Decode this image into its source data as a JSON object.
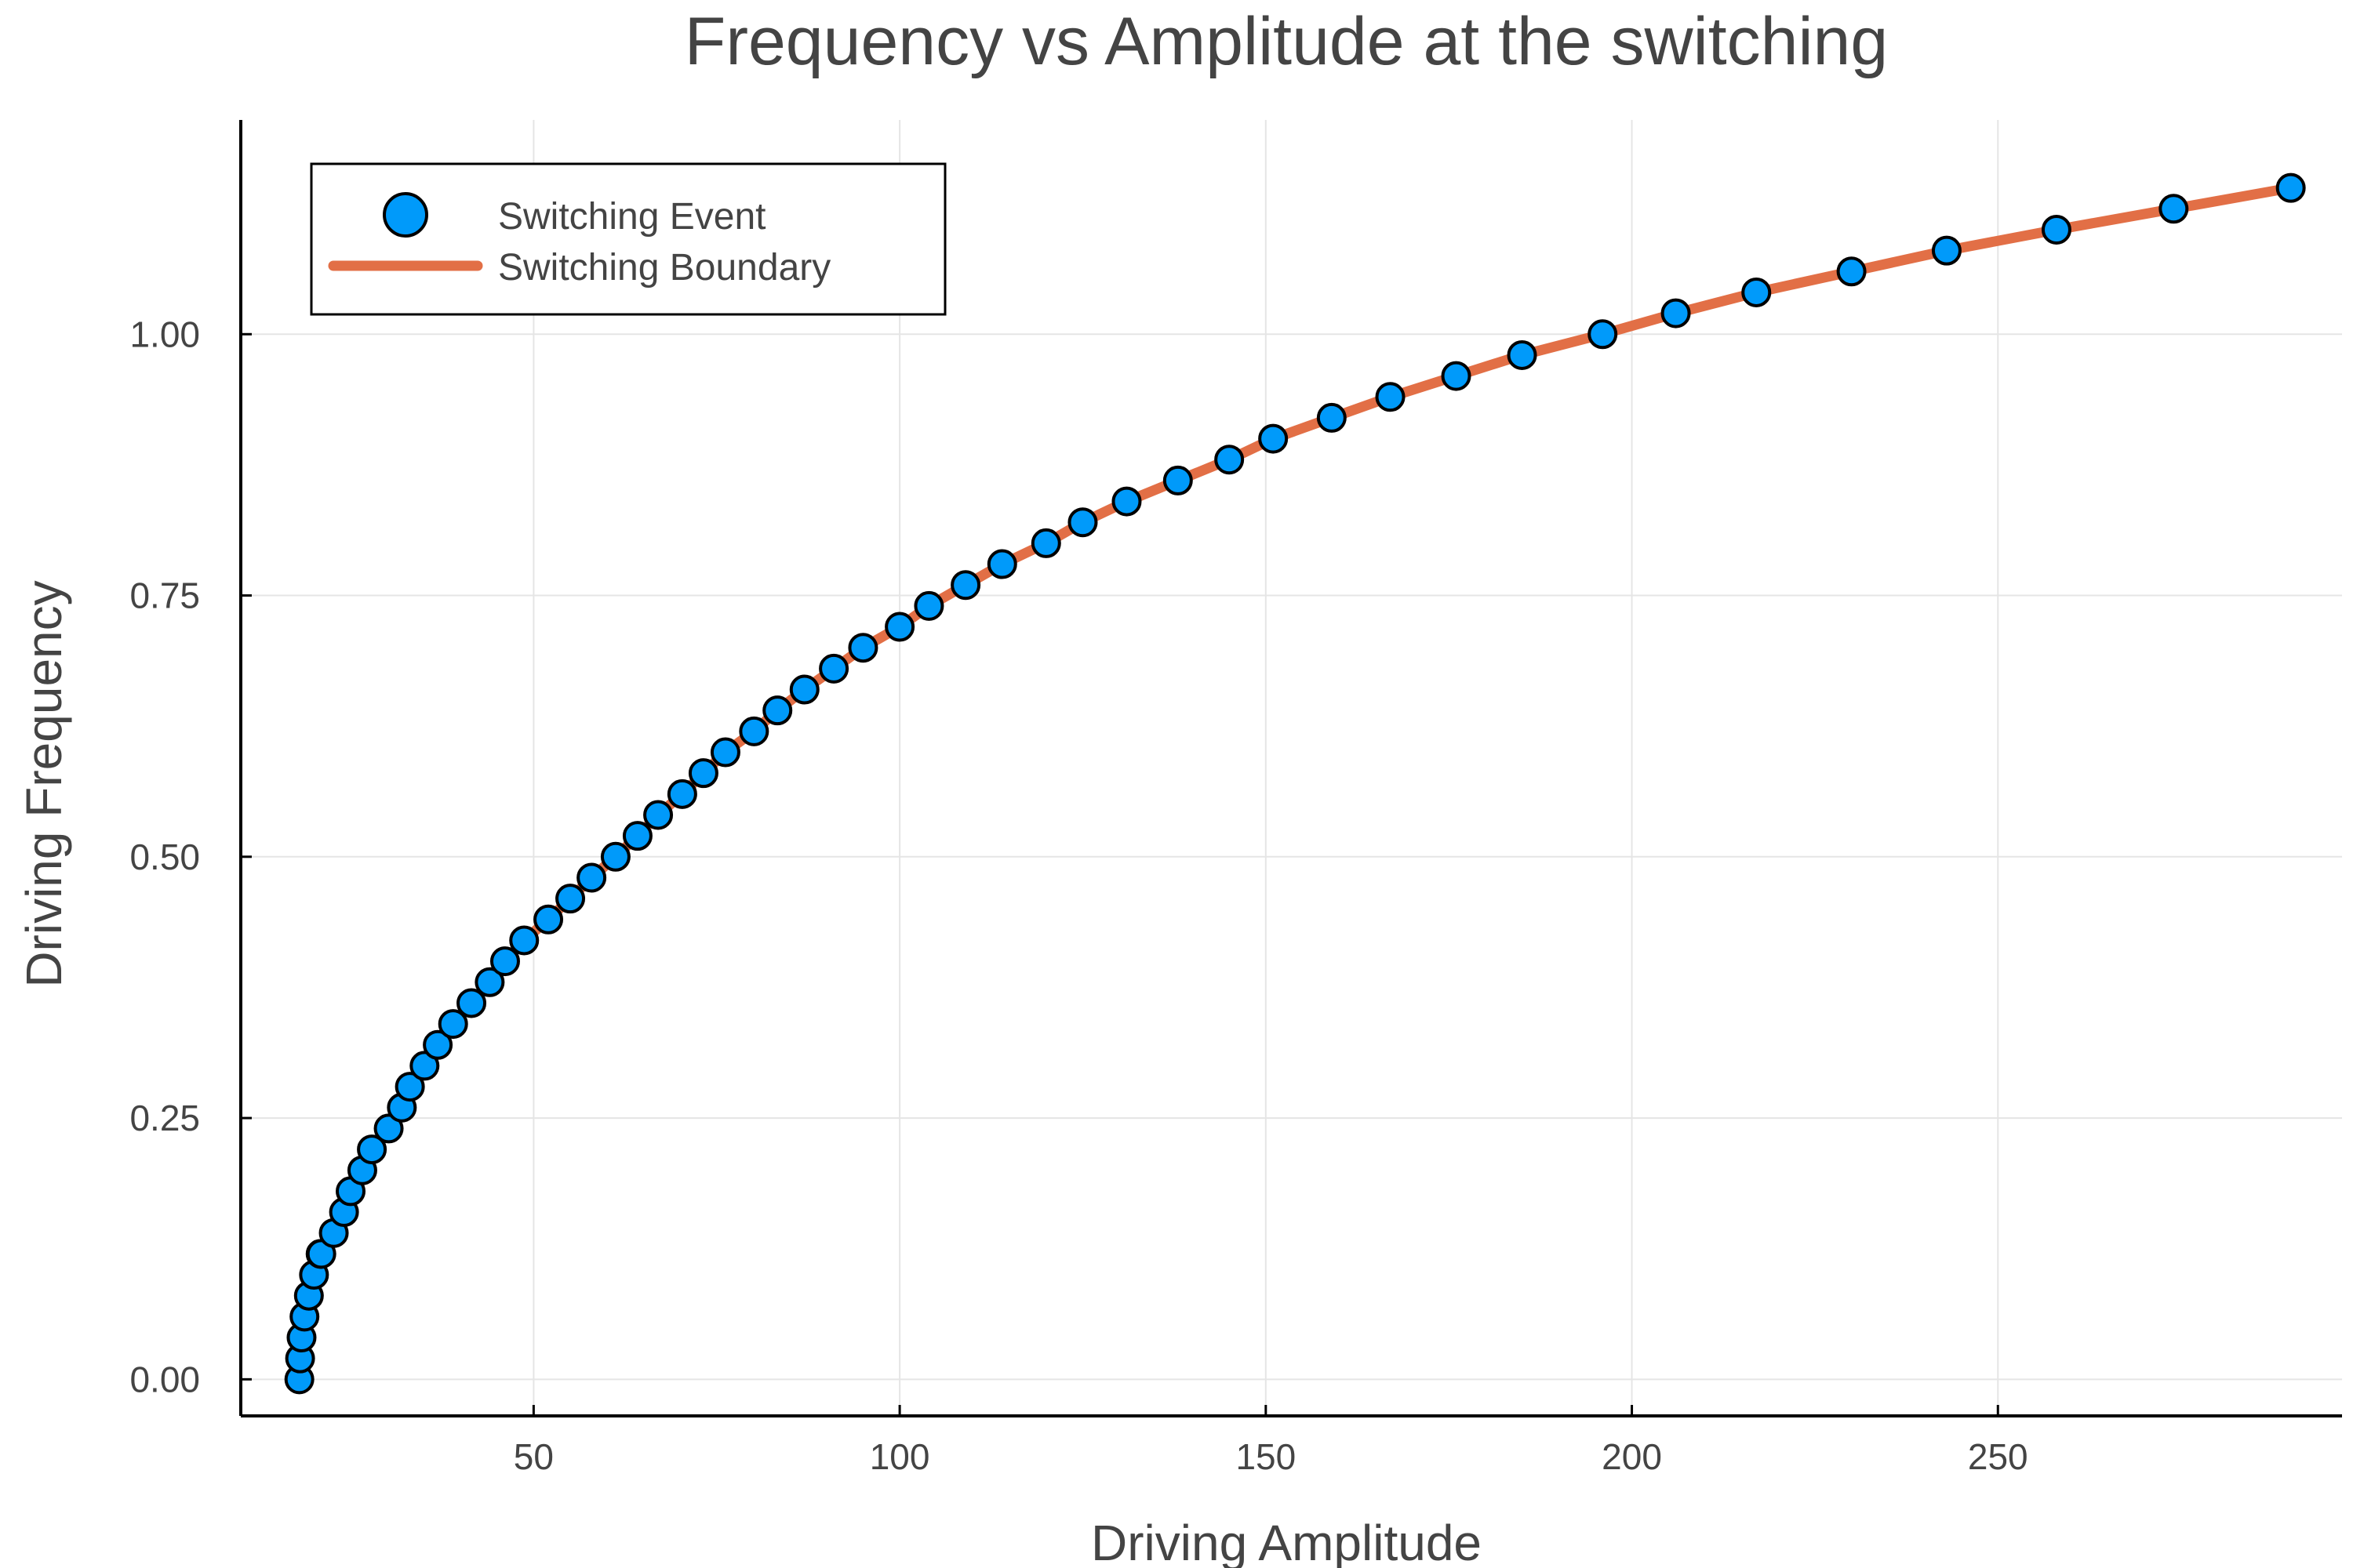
{
  "chart_data": {
    "type": "scatter",
    "title": "Frequency vs Amplitude at the switching",
    "xlabel": "Driving Amplitude",
    "ylabel": "Driving Frequency",
    "xlim": [
      10,
      297
    ],
    "ylim": [
      -0.035,
      1.205
    ],
    "xticks": [
      50,
      100,
      150,
      200,
      250
    ],
    "xtick_labels": [
      "50",
      "100",
      "150",
      "200",
      "250"
    ],
    "yticks": [
      0,
      0.25,
      0.5,
      0.75,
      1.0
    ],
    "ytick_labels": [
      "0.00",
      "0.25",
      "0.50",
      "0.75",
      "1.00"
    ],
    "grid": true,
    "legend_position": "top-left",
    "series": [
      {
        "name": "Switching Event",
        "kind": "scatter",
        "color": "#009AFA",
        "x": [
          18.0,
          18.1,
          18.3,
          18.7,
          19.3,
          20.0,
          20.9,
          21.0,
          22.7,
          24.1,
          25.0,
          26.6,
          27.9,
          30.2,
          32.0,
          33.1,
          35.1,
          36.9,
          39.0,
          41.5,
          44.0,
          46.1,
          48.7,
          52.0,
          55.0,
          57.9,
          61.2,
          64.2,
          67.0,
          70.3,
          73.2,
          76.2,
          80.1,
          83.3,
          87.0,
          91.0,
          95.0,
          100.0,
          104.0,
          109.0,
          114.0,
          120.0,
          125.0,
          131.0,
          138.0,
          145.0,
          151.0,
          159.0,
          167.0,
          176.0,
          185.0,
          196.0,
          206.0,
          217.0,
          230.0,
          243.0,
          258.0,
          274.0,
          290.0
        ],
        "y": [
          0.0,
          0.02,
          0.04,
          0.06,
          0.08,
          0.1,
          0.12,
          0.12,
          0.14,
          0.16,
          0.18,
          0.2,
          0.22,
          0.24,
          0.26,
          0.28,
          0.3,
          0.32,
          0.34,
          0.36,
          0.38,
          0.4,
          0.42,
          0.44,
          0.46,
          0.48,
          0.5,
          0.52,
          0.54,
          0.56,
          0.58,
          0.6,
          0.62,
          0.64,
          0.66,
          0.68,
          0.7,
          0.72,
          0.74,
          0.76,
          0.78,
          0.8,
          0.82,
          0.84,
          0.86,
          0.88,
          0.9,
          0.92,
          0.94,
          0.96,
          0.98,
          1.0,
          1.02,
          1.04,
          1.06,
          1.08,
          1.1,
          1.12,
          1.14
        ]
      },
      {
        "name": "Switching Boundary",
        "kind": "line",
        "color": "#E26F46",
        "x": [
          18.0,
          18.1,
          18.3,
          18.7,
          19.3,
          20.0,
          20.9,
          22.7,
          24.1,
          25.0,
          26.6,
          27.9,
          30.2,
          32.0,
          33.1,
          35.1,
          36.9,
          39.0,
          41.5,
          44.0,
          46.1,
          48.7,
          52.0,
          55.0,
          57.9,
          61.2,
          64.2,
          67.0,
          70.3,
          73.2,
          76.2,
          80.1,
          83.3,
          87.0,
          91.0,
          95.0,
          100.0,
          104.0,
          109.0,
          114.0,
          120.0,
          125.0,
          131.0,
          138.0,
          145.0,
          151.0,
          159.0,
          167.0,
          176.0,
          185.0,
          196.0,
          206.0,
          217.0,
          230.0,
          243.0,
          258.0,
          274.0,
          290.0
        ],
        "y": [
          0.0,
          0.02,
          0.04,
          0.06,
          0.08,
          0.1,
          0.12,
          0.14,
          0.16,
          0.18,
          0.2,
          0.22,
          0.24,
          0.26,
          0.28,
          0.3,
          0.32,
          0.34,
          0.36,
          0.38,
          0.4,
          0.42,
          0.44,
          0.46,
          0.48,
          0.5,
          0.52,
          0.54,
          0.56,
          0.58,
          0.6,
          0.62,
          0.64,
          0.66,
          0.68,
          0.7,
          0.72,
          0.74,
          0.76,
          0.78,
          0.8,
          0.82,
          0.84,
          0.86,
          0.88,
          0.9,
          0.92,
          0.94,
          0.96,
          0.98,
          1.0,
          1.02,
          1.04,
          1.06,
          1.08,
          1.1,
          1.12,
          1.14
        ]
      }
    ]
  }
}
